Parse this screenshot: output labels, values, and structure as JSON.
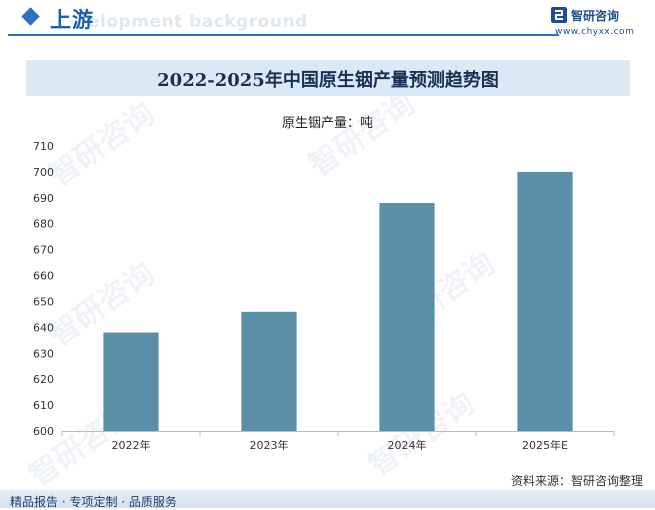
{
  "header": {
    "section_title": "上游",
    "background_text": "elopment background"
  },
  "logo": {
    "name": "智研咨询",
    "url": "www.chyxx.com",
    "watermark": "智研咨询"
  },
  "colors": {
    "accent": "#2e72b8",
    "bar": "#5b8fa8",
    "title_band": "#dbe9f7"
  },
  "chart_data": {
    "type": "bar",
    "title": "2022-2025年中国原生铟产量预测趋势图",
    "series_caption": "原生铟产量：吨",
    "categories": [
      "2022年",
      "2023年",
      "2024年",
      "2025年E"
    ],
    "series": [
      {
        "name": "原生铟产量：吨",
        "values": [
          638,
          646,
          688,
          700
        ]
      }
    ],
    "ylim": [
      600,
      710
    ],
    "yticks": [
      600,
      610,
      620,
      630,
      640,
      650,
      660,
      670,
      680,
      690,
      700,
      710
    ],
    "grid": false,
    "legend": "none"
  },
  "footer": {
    "source": "资料来源：智研咨询整理",
    "tagline": "精品报告 · 专项定制 · 品质服务"
  }
}
